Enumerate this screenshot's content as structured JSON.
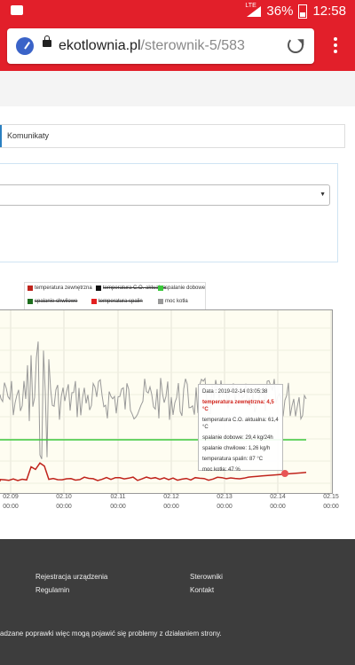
{
  "status": {
    "battery": "36%",
    "time": "12:58",
    "network": "LTE"
  },
  "browser": {
    "domain": "ekotlownia.pl",
    "path": "/sterownik-5/583"
  },
  "tabs": {
    "messages": "Komunikaty"
  },
  "legend": [
    {
      "label": "temperatura zewnętrzna",
      "color": "#c0241c"
    },
    {
      "label": "temperatura C.O. aktualna",
      "color": "#111111"
    },
    {
      "label": "spalanie dobowe",
      "color": "#3cc93c"
    },
    {
      "label": "spalanie chwilowe",
      "color": "#1e6e1e"
    },
    {
      "label": "temperatura spalin",
      "color": "#e32020"
    },
    {
      "label": "moc kotła",
      "color": "#999999"
    }
  ],
  "tooltip": {
    "date": "Data : 2019-02-14 03:05:38",
    "outside": "temperatura zewnętrzna: 4,5 °C",
    "co": "temperatura C.O. aktualna: 61,4 °C",
    "daily": "spalanie dobowe: 29,4 kg/24h",
    "instant": "spalanie chwilowe: 1,26 kg/h",
    "flue": "temperatura spalin: 87 °C",
    "power": "moc kotła: 47 %"
  },
  "chart_data": {
    "type": "line",
    "x_labels": [
      "02.09 00:00",
      "02.10 00:00",
      "02.11 00:00",
      "02.12 00:00",
      "02.13 00:00",
      "02.14 00:00",
      "02.15 00:00"
    ],
    "series": [
      {
        "name": "moc kotła",
        "color": "#999999"
      },
      {
        "name": "spalanie dobowe",
        "color": "#3cc93c"
      },
      {
        "name": "temperatura zewnętrzna",
        "color": "#c0241c"
      }
    ]
  },
  "footer": {
    "register": "Rejestracja urządzenia",
    "terms": "Regulamin",
    "controllers": "Sterowniki",
    "contact": "Kontakt",
    "notice": "adzane poprawki więc mogą pojawić się problemy z działaniem strony."
  }
}
